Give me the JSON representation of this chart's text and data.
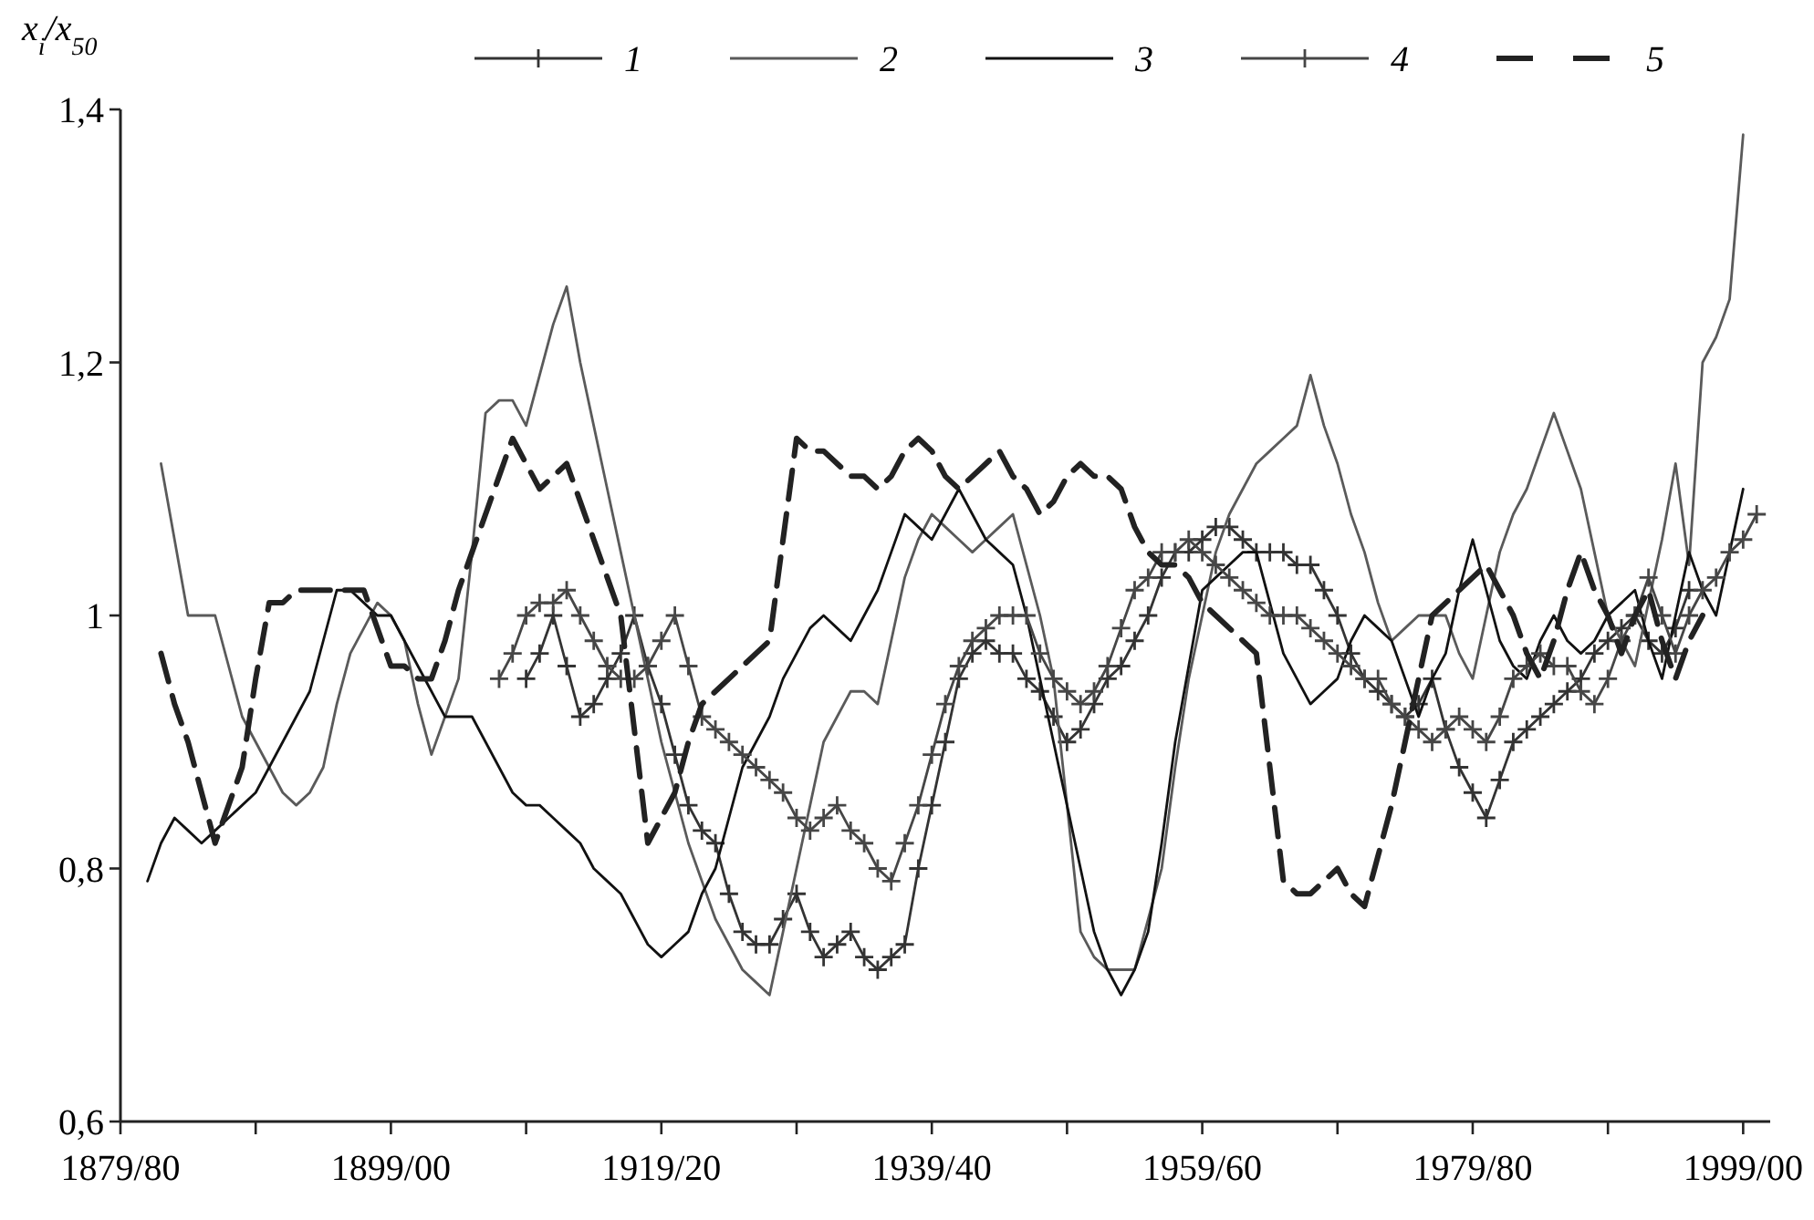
{
  "chart_data": {
    "type": "line",
    "ylabel": "x$_{i}$/x$_{50}$",
    "legend": "top",
    "grid": false,
    "categories": [
      "1879/80",
      null,
      null,
      null,
      null,
      null,
      null,
      null,
      null,
      null,
      null,
      null,
      null,
      null,
      null,
      null,
      null,
      null,
      null,
      null,
      "1899/00",
      null,
      null,
      null,
      null,
      null,
      null,
      null,
      null,
      null,
      null,
      null,
      null,
      null,
      null,
      null,
      null,
      null,
      null,
      null,
      "1919/20",
      null,
      null,
      null,
      null,
      null,
      null,
      null,
      null,
      null,
      null,
      null,
      null,
      null,
      null,
      null,
      null,
      null,
      null,
      null,
      "1939/40",
      null,
      null,
      null,
      null,
      null,
      null,
      null,
      null,
      null,
      null,
      null,
      null,
      null,
      null,
      null,
      null,
      null,
      null,
      null,
      "1959/60",
      null,
      null,
      null,
      null,
      null,
      null,
      null,
      null,
      null,
      null,
      null,
      null,
      null,
      null,
      null,
      null,
      null,
      null,
      null,
      "1979/80",
      null,
      null,
      null,
      null,
      null,
      null,
      null,
      null,
      null,
      null,
      null,
      null,
      null,
      null,
      null,
      null,
      null,
      null,
      null,
      "1999/00",
      null,
      null
    ],
    "ylim": [
      0.6,
      1.4
    ],
    "yticks": [
      {
        "value": 0.6,
        "label": "0,6"
      },
      {
        "value": 0.8,
        "label": "0,8"
      },
      1,
      {
        "value": 1.2,
        "label": "1,2"
      },
      {
        "value": 1.4,
        "label": "1,4"
      }
    ],
    "series": [
      {
        "name": "1",
        "color": "#333333",
        "marker": "cross",
        "line_style": "solid",
        "values": [
          null,
          null,
          null,
          null,
          null,
          null,
          null,
          null,
          null,
          null,
          null,
          null,
          null,
          null,
          null,
          null,
          null,
          null,
          null,
          null,
          null,
          null,
          null,
          null,
          null,
          null,
          null,
          null,
          null,
          null,
          0.95,
          0.97,
          1.0,
          0.96,
          0.92,
          0.93,
          0.95,
          0.97,
          1.0,
          0.96,
          0.93,
          0.89,
          0.85,
          0.83,
          0.82,
          0.78,
          0.75,
          0.74,
          0.74,
          0.76,
          0.78,
          0.75,
          0.73,
          0.74,
          0.75,
          0.73,
          0.72,
          0.73,
          0.74,
          0.8,
          0.85,
          0.9,
          0.95,
          0.97,
          0.98,
          0.97,
          0.97,
          0.95,
          0.94,
          0.92,
          0.9,
          0.91,
          0.93,
          0.95,
          0.96,
          0.98,
          1.0,
          1.03,
          1.05,
          1.05,
          1.06,
          1.07,
          1.07,
          1.06,
          1.05,
          1.05,
          1.05,
          1.04,
          1.04,
          1.02,
          1.0,
          0.97,
          0.95,
          0.94,
          0.93,
          0.92,
          0.93,
          0.95,
          0.91,
          0.88,
          0.86,
          0.84,
          0.87,
          0.9,
          0.91,
          0.92,
          0.93,
          0.94,
          0.95,
          0.97,
          0.98,
          0.99,
          1.0,
          0.98,
          0.97,
          0.99,
          1.02,
          null,
          null,
          null,
          null,
          null,
          null
        ]
      },
      {
        "name": "2",
        "color": "#5a5a5a",
        "marker": "none",
        "line_style": "solid",
        "values": [
          null,
          null,
          null,
          1.12,
          1.06,
          1.0,
          1.0,
          1.0,
          0.96,
          0.92,
          0.9,
          0.88,
          0.86,
          0.85,
          0.86,
          0.88,
          0.93,
          0.97,
          0.99,
          1.01,
          1.0,
          0.98,
          0.93,
          0.89,
          0.92,
          0.95,
          1.05,
          1.16,
          1.17,
          1.17,
          1.15,
          1.19,
          1.23,
          1.26,
          1.2,
          1.15,
          1.1,
          1.05,
          1.0,
          0.95,
          0.9,
          0.86,
          0.82,
          0.79,
          0.76,
          0.74,
          0.72,
          0.71,
          0.7,
          0.75,
          0.8,
          0.85,
          0.9,
          0.92,
          0.94,
          0.94,
          0.93,
          0.98,
          1.03,
          1.06,
          1.08,
          1.07,
          1.06,
          1.05,
          1.06,
          1.07,
          1.08,
          1.04,
          1.0,
          0.95,
          0.85,
          0.75,
          0.73,
          0.72,
          0.72,
          0.72,
          0.76,
          0.8,
          0.88,
          0.95,
          1.0,
          1.05,
          1.08,
          1.1,
          1.12,
          1.13,
          1.14,
          1.15,
          1.19,
          1.15,
          1.12,
          1.08,
          1.05,
          1.01,
          0.98,
          0.99,
          1.0,
          1.0,
          1.0,
          0.97,
          0.95,
          1.0,
          1.05,
          1.08,
          1.1,
          1.13,
          1.16,
          1.13,
          1.1,
          1.05,
          1.0,
          0.98,
          0.96,
          1.01,
          1.06,
          1.12,
          1.04,
          1.2,
          1.22,
          1.25,
          1.38,
          null,
          null
        ]
      },
      {
        "name": "3",
        "color": "#111111",
        "marker": "none",
        "line_style": "solid",
        "values": [
          null,
          null,
          0.79,
          0.82,
          0.84,
          0.83,
          0.82,
          0.83,
          0.84,
          0.85,
          0.86,
          0.88,
          0.9,
          0.92,
          0.94,
          0.98,
          1.02,
          1.02,
          1.01,
          1.0,
          1.0,
          0.98,
          0.96,
          0.94,
          0.92,
          0.92,
          0.92,
          0.9,
          0.88,
          0.86,
          0.85,
          0.85,
          0.84,
          0.83,
          0.82,
          0.8,
          0.79,
          0.78,
          0.76,
          0.74,
          0.73,
          0.74,
          0.75,
          0.78,
          0.8,
          0.84,
          0.88,
          0.9,
          0.92,
          0.95,
          0.97,
          0.99,
          1.0,
          0.99,
          0.98,
          1.0,
          1.02,
          1.05,
          1.08,
          1.07,
          1.06,
          1.08,
          1.1,
          1.08,
          1.06,
          1.05,
          1.04,
          1.0,
          0.95,
          0.9,
          0.85,
          0.8,
          0.75,
          0.72,
          0.7,
          0.72,
          0.75,
          0.82,
          0.9,
          0.96,
          1.02,
          1.03,
          1.04,
          1.05,
          1.05,
          1.01,
          0.97,
          0.95,
          0.93,
          0.94,
          0.95,
          0.98,
          1.0,
          0.99,
          0.98,
          0.95,
          0.92,
          0.95,
          0.97,
          1.02,
          1.06,
          1.02,
          0.98,
          0.96,
          0.95,
          0.98,
          1.0,
          0.98,
          0.97,
          0.98,
          1.0,
          1.01,
          1.02,
          0.98,
          0.95,
          1.0,
          1.05,
          1.02,
          1.0,
          1.05,
          1.1,
          null,
          null
        ]
      },
      {
        "name": "4",
        "color": "#464646",
        "marker": "cross",
        "line_style": "solid",
        "values": [
          null,
          null,
          null,
          null,
          null,
          null,
          null,
          null,
          null,
          null,
          null,
          null,
          null,
          null,
          null,
          null,
          null,
          null,
          null,
          null,
          null,
          null,
          null,
          null,
          null,
          null,
          null,
          null,
          0.95,
          0.97,
          1.0,
          1.01,
          1.01,
          1.02,
          1.0,
          0.98,
          0.96,
          0.95,
          0.95,
          0.96,
          0.98,
          1.0,
          0.96,
          0.92,
          0.91,
          0.9,
          0.89,
          0.88,
          0.87,
          0.86,
          0.84,
          0.83,
          0.84,
          0.85,
          0.83,
          0.82,
          0.8,
          0.79,
          0.82,
          0.85,
          0.89,
          0.93,
          0.96,
          0.98,
          0.99,
          1.0,
          1.0,
          1.0,
          0.97,
          0.95,
          0.94,
          0.93,
          0.94,
          0.96,
          0.99,
          1.02,
          1.03,
          1.05,
          1.05,
          1.06,
          1.05,
          1.04,
          1.03,
          1.02,
          1.01,
          1.0,
          1.0,
          1.0,
          0.99,
          0.98,
          0.97,
          0.96,
          0.95,
          0.95,
          0.93,
          0.92,
          0.91,
          0.9,
          0.91,
          0.92,
          0.91,
          0.9,
          0.92,
          0.95,
          0.96,
          0.97,
          0.96,
          0.96,
          0.94,
          0.93,
          0.95,
          0.98,
          1.0,
          1.03,
          1.0,
          0.97,
          1.0,
          1.02,
          1.03,
          1.05,
          1.06,
          1.08,
          null
        ]
      },
      {
        "name": "5",
        "color": "#222222",
        "marker": "none",
        "line_style": "dashed",
        "values": [
          null,
          null,
          null,
          0.97,
          0.93,
          0.9,
          0.86,
          0.82,
          0.85,
          0.88,
          0.95,
          1.01,
          1.01,
          1.02,
          1.02,
          1.02,
          1.02,
          1.02,
          1.02,
          0.99,
          0.96,
          0.96,
          0.95,
          0.95,
          0.98,
          1.02,
          1.05,
          1.08,
          1.11,
          1.14,
          1.12,
          1.1,
          1.11,
          1.12,
          1.09,
          1.06,
          1.03,
          1.0,
          0.91,
          0.82,
          0.84,
          0.86,
          0.9,
          0.93,
          0.94,
          0.95,
          0.96,
          0.97,
          0.98,
          1.06,
          1.14,
          1.13,
          1.13,
          1.12,
          1.11,
          1.11,
          1.1,
          1.11,
          1.13,
          1.14,
          1.13,
          1.11,
          1.1,
          1.11,
          1.12,
          1.13,
          1.11,
          1.1,
          1.08,
          1.09,
          1.11,
          1.12,
          1.11,
          1.11,
          1.1,
          1.07,
          1.05,
          1.04,
          1.04,
          1.03,
          1.01,
          1.0,
          0.99,
          0.98,
          0.97,
          0.88,
          0.79,
          0.78,
          0.78,
          0.79,
          0.8,
          0.78,
          0.77,
          0.81,
          0.85,
          0.9,
          0.95,
          1.0,
          1.01,
          1.02,
          1.03,
          1.04,
          1.02,
          1.0,
          0.97,
          0.95,
          0.98,
          1.02,
          1.05,
          1.02,
          1.0,
          0.97,
          1.0,
          1.02,
          0.98,
          0.95,
          0.98,
          1.0,
          null,
          null,
          null,
          null,
          null
        ]
      }
    ]
  }
}
